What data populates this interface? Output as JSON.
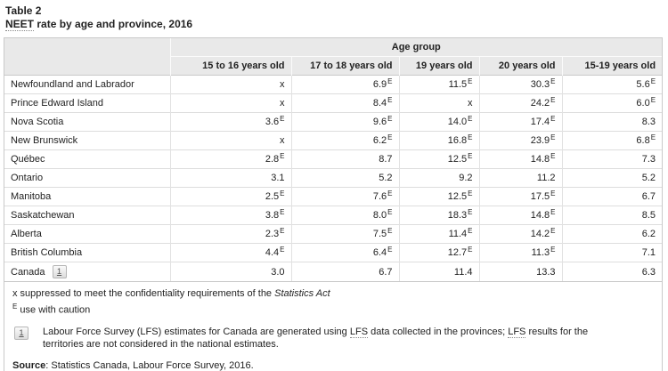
{
  "page": {
    "title_line1": "Table 2",
    "title_abbr": "NEET",
    "title_rest": " rate by age and province, 2016"
  },
  "colors": {
    "header_bg": "#e9e9e9",
    "outer_border": "#c9c9c9",
    "cell_border": "#dddddd"
  },
  "table": {
    "group_header": "Age group",
    "columns": [
      "15 to 16 years old",
      "17 to 18 years old",
      "19 years old",
      "20 years old",
      "15-19 years old"
    ],
    "caution_flag": "E",
    "suppressed_symbol": "x",
    "rows": [
      {
        "label": "Newfoundland and Labrador",
        "cells": [
          {
            "v": "x",
            "e": false
          },
          {
            "v": "6.9",
            "e": true
          },
          {
            "v": "11.5",
            "e": true
          },
          {
            "v": "30.3",
            "e": true
          },
          {
            "v": "5.6",
            "e": true
          }
        ]
      },
      {
        "label": "Prince Edward Island",
        "cells": [
          {
            "v": "x",
            "e": false
          },
          {
            "v": "8.4",
            "e": true
          },
          {
            "v": "x",
            "e": false
          },
          {
            "v": "24.2",
            "e": true
          },
          {
            "v": "6.0",
            "e": true
          }
        ]
      },
      {
        "label": "Nova Scotia",
        "cells": [
          {
            "v": "3.6",
            "e": true
          },
          {
            "v": "9.6",
            "e": true
          },
          {
            "v": "14.0",
            "e": true
          },
          {
            "v": "17.4",
            "e": true
          },
          {
            "v": "8.3",
            "e": false
          }
        ]
      },
      {
        "label": "New Brunswick",
        "cells": [
          {
            "v": "x",
            "e": false
          },
          {
            "v": "6.2",
            "e": true
          },
          {
            "v": "16.8",
            "e": true
          },
          {
            "v": "23.9",
            "e": true
          },
          {
            "v": "6.8",
            "e": true
          }
        ]
      },
      {
        "label": "Québec",
        "cells": [
          {
            "v": "2.8",
            "e": true
          },
          {
            "v": "8.7",
            "e": false
          },
          {
            "v": "12.5",
            "e": true
          },
          {
            "v": "14.8",
            "e": true
          },
          {
            "v": "7.3",
            "e": false
          }
        ]
      },
      {
        "label": "Ontario",
        "cells": [
          {
            "v": "3.1",
            "e": false
          },
          {
            "v": "5.2",
            "e": false
          },
          {
            "v": "9.2",
            "e": false
          },
          {
            "v": "11.2",
            "e": false
          },
          {
            "v": "5.2",
            "e": false
          }
        ]
      },
      {
        "label": "Manitoba",
        "cells": [
          {
            "v": "2.5",
            "e": true
          },
          {
            "v": "7.6",
            "e": true
          },
          {
            "v": "12.5",
            "e": true
          },
          {
            "v": "17.5",
            "e": true
          },
          {
            "v": "6.7",
            "e": false
          }
        ]
      },
      {
        "label": "Saskatchewan",
        "cells": [
          {
            "v": "3.8",
            "e": true
          },
          {
            "v": "8.0",
            "e": true
          },
          {
            "v": "18.3",
            "e": true
          },
          {
            "v": "14.8",
            "e": true
          },
          {
            "v": "8.5",
            "e": false
          }
        ]
      },
      {
        "label": "Alberta",
        "cells": [
          {
            "v": "2.3",
            "e": true
          },
          {
            "v": "7.5",
            "e": true
          },
          {
            "v": "11.4",
            "e": true
          },
          {
            "v": "14.2",
            "e": true
          },
          {
            "v": "6.2",
            "e": false
          }
        ]
      },
      {
        "label": "British Columbia",
        "cells": [
          {
            "v": "4.4",
            "e": true
          },
          {
            "v": "6.4",
            "e": true
          },
          {
            "v": "12.7",
            "e": true
          },
          {
            "v": "11.3",
            "e": true
          },
          {
            "v": "7.1",
            "e": false
          }
        ]
      },
      {
        "label": "Canada",
        "footnote": "1",
        "cells": [
          {
            "v": "3.0",
            "e": false
          },
          {
            "v": "6.7",
            "e": false
          },
          {
            "v": "11.4",
            "e": false
          },
          {
            "v": "13.3",
            "e": false
          },
          {
            "v": "6.3",
            "e": false
          }
        ]
      }
    ]
  },
  "notes": {
    "suppressed_prefix": "x suppressed to meet the confidentiality requirements of the ",
    "suppressed_italic": "Statistics Act",
    "caution_sup": "E",
    "caution_text": " use with caution",
    "footnote1_marker": "1",
    "footnote1_parts": [
      "Labour Force Survey (LFS) estimates for Canada are generated using ",
      "LFS",
      " data collected in the provinces; ",
      "LFS",
      " results for the territories are not considered in the national estimates."
    ],
    "source_label": "Source",
    "source_text": ": Statistics Canada, Labour Force Survey, 2016."
  }
}
